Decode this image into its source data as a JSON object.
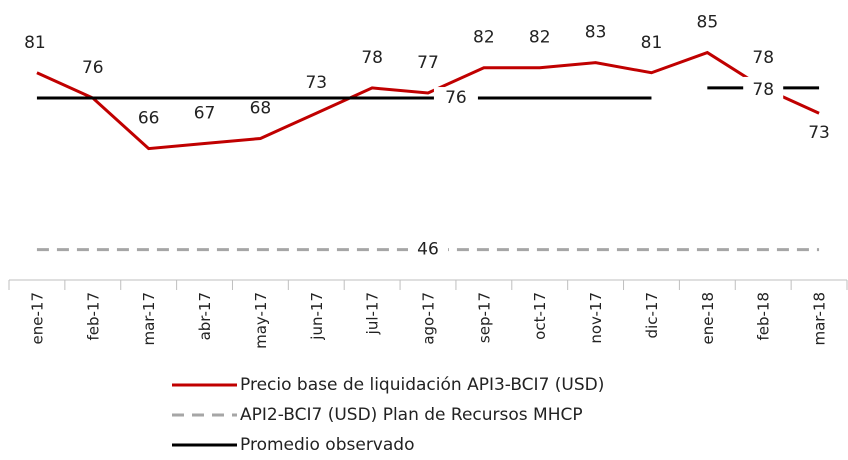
{
  "chart_data": {
    "type": "line",
    "categories": [
      "ene-17",
      "feb-17",
      "mar-17",
      "abr-17",
      "may-17",
      "jun-17",
      "jul-17",
      "ago-17",
      "sep-17",
      "oct-17",
      "nov-17",
      "dic-17",
      "ene-18",
      "feb-18",
      "mar-18"
    ],
    "series": [
      {
        "name": "Precio base de liquidación API3-BCI7 (USD)",
        "color": "#c00000",
        "style": "solid",
        "values": [
          81,
          76,
          66,
          67,
          68,
          73,
          78,
          77,
          82,
          82,
          83,
          81,
          85,
          78,
          73
        ]
      },
      {
        "name": "API2-BCI7 (USD) Plan de Recursos MHCP",
        "color": "#a6a6a6",
        "style": "dashed",
        "values": [
          46,
          46,
          46,
          46,
          46,
          46,
          46,
          46,
          46,
          46,
          46,
          46,
          46,
          46,
          46
        ]
      },
      {
        "name": "Promedio observado",
        "color": "#000000",
        "style": "runs",
        "values": [
          76,
          76,
          76,
          76,
          76,
          76,
          76,
          76,
          76,
          76,
          76,
          76,
          78,
          78,
          78
        ]
      }
    ],
    "ylim": [
      40,
      95
    ]
  }
}
